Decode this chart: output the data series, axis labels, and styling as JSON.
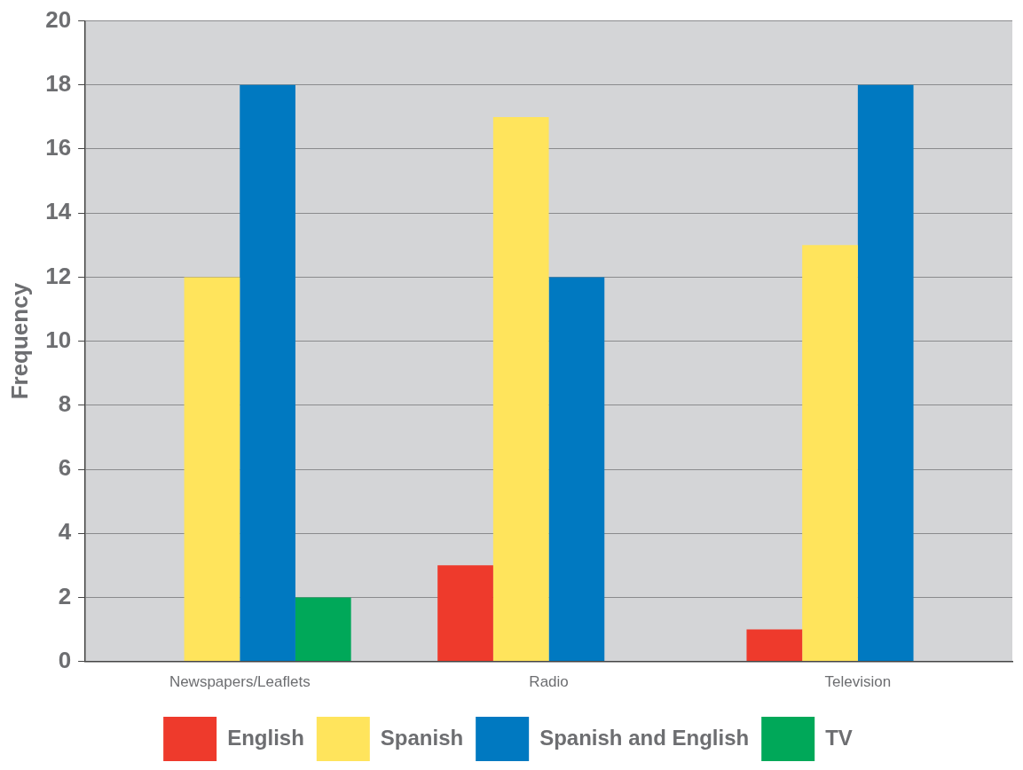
{
  "chart_data": {
    "type": "bar",
    "ylabel": "Frequency",
    "categories": [
      "Newspapers/Leaflets",
      "Radio",
      "Television"
    ],
    "series": [
      {
        "name": "English",
        "color": "#ee3a2c",
        "values": [
          0,
          3,
          1
        ]
      },
      {
        "name": "Spanish",
        "color": "#ffe45c",
        "values": [
          12,
          17,
          13
        ]
      },
      {
        "name": "Spanish and English",
        "color": "#0079c1",
        "values": [
          18,
          12,
          18
        ]
      },
      {
        "name": "TV",
        "color": "#00a859",
        "values": [
          2,
          0,
          0
        ]
      }
    ],
    "ylim": [
      0,
      20
    ],
    "yticks": [
      0,
      2,
      4,
      6,
      8,
      10,
      12,
      14,
      16,
      18,
      20
    ],
    "grid": "y",
    "legend": "bottom"
  }
}
